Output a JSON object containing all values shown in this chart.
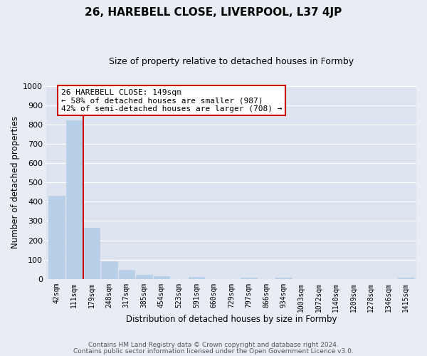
{
  "title": "26, HAREBELL CLOSE, LIVERPOOL, L37 4JP",
  "subtitle": "Size of property relative to detached houses in Formby",
  "xlabel": "Distribution of detached houses by size in Formby",
  "ylabel": "Number of detached properties",
  "bar_labels": [
    "42sqm",
    "111sqm",
    "179sqm",
    "248sqm",
    "317sqm",
    "385sqm",
    "454sqm",
    "523sqm",
    "591sqm",
    "660sqm",
    "729sqm",
    "797sqm",
    "866sqm",
    "934sqm",
    "1003sqm",
    "1072sqm",
    "1140sqm",
    "1209sqm",
    "1278sqm",
    "1346sqm",
    "1415sqm"
  ],
  "bar_values": [
    430,
    820,
    263,
    93,
    47,
    20,
    13,
    0,
    11,
    0,
    0,
    8,
    0,
    7,
    0,
    0,
    0,
    0,
    0,
    0,
    8
  ],
  "bar_color": "#b8cfe8",
  "bar_edgecolor": "#b8cfe8",
  "vline_color": "#cc0000",
  "annotation_text": "26 HAREBELL CLOSE: 149sqm\n← 58% of detached houses are smaller (987)\n42% of semi-detached houses are larger (708) →",
  "annotation_box_facecolor": "#ffffff",
  "annotation_box_edgecolor": "#cc0000",
  "ylim": [
    0,
    1000
  ],
  "yticks": [
    0,
    100,
    200,
    300,
    400,
    500,
    600,
    700,
    800,
    900,
    1000
  ],
  "fig_facecolor": "#e8ecf5",
  "axes_facecolor": "#dde4f0",
  "grid_color": "#ffffff",
  "footer_line1": "Contains HM Land Registry data © Crown copyright and database right 2024.",
  "footer_line2": "Contains public sector information licensed under the Open Government Licence v3.0."
}
